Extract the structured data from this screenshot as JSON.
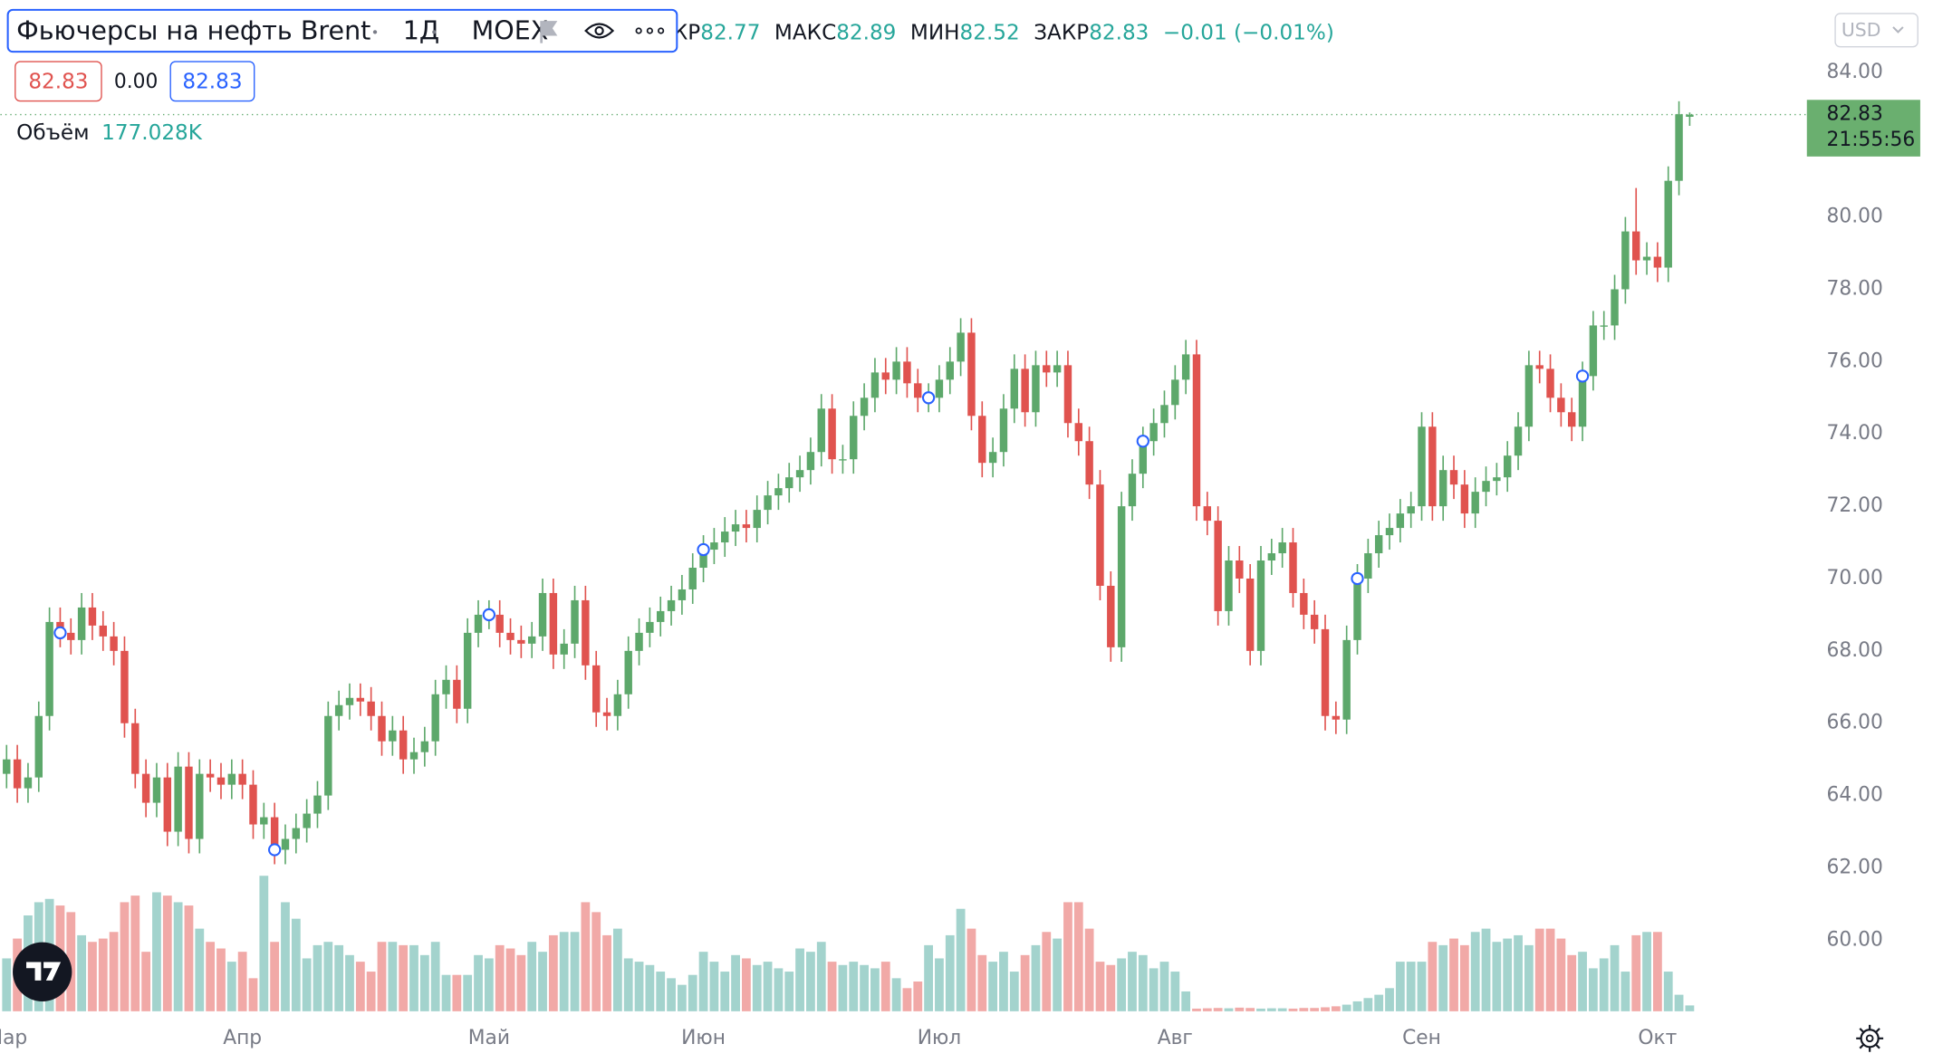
{
  "chart_data": {
    "type": "candlestick",
    "title": "Фьючерсы на нефть Brent",
    "interval": "1Д",
    "exchange": "MOEX",
    "open_label": "ОТКР",
    "high_label": "МАКС",
    "low_label": "МИН",
    "close_label": "ЗАКР",
    "change_label": "−0.01 (−0.01%)",
    "spread_label": "0.00",
    "volume_label": "Объём",
    "volume_value_label": "177.028K",
    "currency": "USD",
    "time_label": "21:55:56",
    "up_color": "#5da86b",
    "down_color": "#e0534f",
    "volume_up_color": "#a3d3cd",
    "volume_down_color": "#f1a9a7",
    "ylim": [
      58,
      86
    ],
    "yticks": [
      {
        "value": 60,
        "label": "60.00"
      },
      {
        "value": 62,
        "label": "62.00"
      },
      {
        "value": 64,
        "label": "64.00"
      },
      {
        "value": 66,
        "label": "66.00"
      },
      {
        "value": 68,
        "label": "68.00"
      },
      {
        "value": 70,
        "label": "70.00"
      },
      {
        "value": 72,
        "label": "72.00"
      },
      {
        "value": 74,
        "label": "74.00"
      },
      {
        "value": 76,
        "label": "76.00"
      },
      {
        "value": 78,
        "label": "78.00"
      },
      {
        "value": 80,
        "label": "80.00"
      },
      {
        "value": 84,
        "label": "84.00"
      }
    ],
    "categories": [
      "Мар",
      null,
      null,
      null,
      null,
      null,
      null,
      null,
      null,
      null,
      null,
      null,
      null,
      null,
      null,
      null,
      null,
      null,
      null,
      null,
      null,
      null,
      "Апр",
      null,
      null,
      null,
      null,
      null,
      null,
      null,
      null,
      null,
      null,
      null,
      null,
      null,
      null,
      null,
      null,
      null,
      null,
      null,
      null,
      null,
      null,
      "Май",
      null,
      null,
      null,
      null,
      null,
      null,
      null,
      null,
      null,
      null,
      null,
      null,
      null,
      null,
      null,
      null,
      null,
      null,
      null,
      "Июн",
      null,
      null,
      null,
      null,
      null,
      null,
      null,
      null,
      null,
      null,
      null,
      null,
      null,
      null,
      null,
      null,
      null,
      null,
      null,
      null,
      null,
      "Июл",
      null,
      null,
      null,
      null,
      null,
      null,
      null,
      null,
      null,
      null,
      null,
      null,
      null,
      null,
      null,
      null,
      null,
      null,
      null,
      null,
      null,
      "Авг",
      null,
      null,
      null,
      null,
      null,
      null,
      null,
      null,
      null,
      null,
      null,
      null,
      null,
      null,
      null,
      null,
      null,
      null,
      null,
      null,
      null,
      null,
      "Сен",
      null,
      null,
      null,
      null,
      null,
      null,
      null,
      null,
      null,
      null,
      null,
      null,
      null,
      null,
      null,
      null,
      null,
      null,
      null,
      null,
      null,
      "Окт",
      null,
      null,
      null
    ],
    "open": [
      64.6,
      65.0,
      64.2,
      64.5,
      66.2,
      68.8,
      68.5,
      68.3,
      69.2,
      68.7,
      68.4,
      68.0,
      66.0,
      64.6,
      63.8,
      64.5,
      63.0,
      64.8,
      62.8,
      64.6,
      64.5,
      64.3,
      64.6,
      64.3,
      63.2,
      63.4,
      62.5,
      62.8,
      63.1,
      63.5,
      64.0,
      66.2,
      66.5,
      66.7,
      66.6,
      66.2,
      65.5,
      65.8,
      65.0,
      65.2,
      65.5,
      66.8,
      67.2,
      66.4,
      68.5,
      69.0,
      69.0,
      68.5,
      68.3,
      68.2,
      68.4,
      69.6,
      67.9,
      68.2,
      69.4,
      67.6,
      66.3,
      66.2,
      66.8,
      68.0,
      68.5,
      68.8,
      69.1,
      69.4,
      69.7,
      70.3,
      70.8,
      71.0,
      71.3,
      71.5,
      71.4,
      71.9,
      72.3,
      72.5,
      72.8,
      73.0,
      73.5,
      74.7,
      73.3,
      73.3,
      74.5,
      75.0,
      75.7,
      75.5,
      76.0,
      75.4,
      75.0,
      75.0,
      75.5,
      76.0,
      76.8,
      74.5,
      73.2,
      73.5,
      74.7,
      75.8,
      74.6,
      75.9,
      75.7,
      75.9,
      74.3,
      73.8,
      72.6,
      69.8,
      68.1,
      72.0,
      72.9,
      73.8,
      74.3,
      74.8,
      75.5,
      76.2,
      72.0,
      71.6,
      69.1,
      70.5,
      70.0,
      68.0,
      70.5,
      70.7,
      71.0,
      69.6,
      69.0,
      68.6,
      66.2,
      66.1,
      68.3,
      70.0,
      70.7,
      71.2,
      71.4,
      71.8,
      72.0,
      74.2,
      72.0,
      73.0,
      72.6,
      71.8,
      72.4,
      72.7,
      72.8,
      73.4,
      74.2,
      75.9,
      75.8,
      75.0,
      74.6,
      74.2,
      75.6,
      77.0,
      77.0,
      78.0,
      79.6,
      78.8,
      78.9,
      78.6,
      81.0,
      82.77
    ],
    "high": [
      65.4,
      65.4,
      64.9,
      66.6,
      69.2,
      69.2,
      68.9,
      69.6,
      69.6,
      69.1,
      68.8,
      68.4,
      66.4,
      65.0,
      64.9,
      64.9,
      65.2,
      65.2,
      65.0,
      65.0,
      64.9,
      65.0,
      65.0,
      64.7,
      63.8,
      63.8,
      63.2,
      63.5,
      63.9,
      64.4,
      66.6,
      66.9,
      67.1,
      67.1,
      67.0,
      66.6,
      66.2,
      66.2,
      65.6,
      65.9,
      67.2,
      67.6,
      67.6,
      68.9,
      69.4,
      69.4,
      69.4,
      68.9,
      68.7,
      68.8,
      70.0,
      70.0,
      68.6,
      69.8,
      69.8,
      68.0,
      66.7,
      67.2,
      68.4,
      68.9,
      69.2,
      69.5,
      69.8,
      70.1,
      70.7,
      71.2,
      71.4,
      71.7,
      71.9,
      71.9,
      72.3,
      72.7,
      72.9,
      73.2,
      73.4,
      73.9,
      75.1,
      75.1,
      73.7,
      74.9,
      75.4,
      76.1,
      76.1,
      76.4,
      76.4,
      75.8,
      75.4,
      75.9,
      76.4,
      77.2,
      77.2,
      74.9,
      73.9,
      75.1,
      76.2,
      76.2,
      76.3,
      76.3,
      76.3,
      76.3,
      74.7,
      74.2,
      73.0,
      70.2,
      72.4,
      73.3,
      74.2,
      74.7,
      75.2,
      75.9,
      76.6,
      76.6,
      72.4,
      72.0,
      70.9,
      70.9,
      70.4,
      70.9,
      71.1,
      71.4,
      71.4,
      70.0,
      69.4,
      69.0,
      66.6,
      68.7,
      70.4,
      71.1,
      71.6,
      71.8,
      72.2,
      72.4,
      74.6,
      74.6,
      73.4,
      73.4,
      73.0,
      72.8,
      73.1,
      73.2,
      73.8,
      74.6,
      76.3,
      76.3,
      76.2,
      75.4,
      75.0,
      76.0,
      77.4,
      77.4,
      78.4,
      80.0,
      80.8,
      79.3,
      79.3,
      81.4,
      83.2,
      82.89
    ],
    "low": [
      64.2,
      63.8,
      63.8,
      64.1,
      65.8,
      68.1,
      67.9,
      67.9,
      68.3,
      68.0,
      67.6,
      65.6,
      64.2,
      63.4,
      63.4,
      62.6,
      62.6,
      62.4,
      62.4,
      64.1,
      63.9,
      63.9,
      63.9,
      62.8,
      62.8,
      62.1,
      62.1,
      62.4,
      62.7,
      63.1,
      63.6,
      65.8,
      66.1,
      66.2,
      65.8,
      65.1,
      65.1,
      64.6,
      64.6,
      64.8,
      65.1,
      66.4,
      66.0,
      66.0,
      68.1,
      68.6,
      68.1,
      67.9,
      67.8,
      67.8,
      68.0,
      67.5,
      67.5,
      67.8,
      67.2,
      65.9,
      65.8,
      65.8,
      66.4,
      67.6,
      68.1,
      68.4,
      68.7,
      69.0,
      69.3,
      69.9,
      70.4,
      70.6,
      70.9,
      71.0,
      71.0,
      71.5,
      71.9,
      72.1,
      72.4,
      72.6,
      73.1,
      72.9,
      72.9,
      72.9,
      74.1,
      74.6,
      75.1,
      75.1,
      75.0,
      74.6,
      74.6,
      74.6,
      75.1,
      75.6,
      74.1,
      72.8,
      72.8,
      73.1,
      74.3,
      74.2,
      74.2,
      75.3,
      75.3,
      73.9,
      73.4,
      72.2,
      69.4,
      67.7,
      67.7,
      71.6,
      72.5,
      73.4,
      73.9,
      74.4,
      75.1,
      71.6,
      71.2,
      68.7,
      68.7,
      69.6,
      67.6,
      67.6,
      70.1,
      70.3,
      69.2,
      68.6,
      68.2,
      65.8,
      65.7,
      65.7,
      67.9,
      69.6,
      70.3,
      70.8,
      71.0,
      71.4,
      71.6,
      71.6,
      71.6,
      72.2,
      71.4,
      71.4,
      72.0,
      72.3,
      72.4,
      73.0,
      73.8,
      75.4,
      74.6,
      74.2,
      73.8,
      73.8,
      75.2,
      76.6,
      76.6,
      77.6,
      78.4,
      78.4,
      78.2,
      78.2,
      80.6,
      82.52
    ],
    "close": [
      65.0,
      64.2,
      64.5,
      66.2,
      68.8,
      68.5,
      68.3,
      69.2,
      68.7,
      68.4,
      68.0,
      66.0,
      64.6,
      63.8,
      64.5,
      63.0,
      64.8,
      62.8,
      64.6,
      64.5,
      64.3,
      64.6,
      64.3,
      63.2,
      63.4,
      62.5,
      62.8,
      63.1,
      63.5,
      64.0,
      66.2,
      66.5,
      66.7,
      66.6,
      66.2,
      65.5,
      65.8,
      65.0,
      65.2,
      65.5,
      66.8,
      67.2,
      66.4,
      68.5,
      69.0,
      69.0,
      68.5,
      68.3,
      68.2,
      68.4,
      69.6,
      67.9,
      68.2,
      69.4,
      67.6,
      66.3,
      66.2,
      66.8,
      68.0,
      68.5,
      68.8,
      69.1,
      69.4,
      69.7,
      70.3,
      70.8,
      71.0,
      71.3,
      71.5,
      71.4,
      71.9,
      72.3,
      72.5,
      72.8,
      73.0,
      73.5,
      74.7,
      73.3,
      73.3,
      74.5,
      75.0,
      75.7,
      75.5,
      76.0,
      75.4,
      75.0,
      75.0,
      75.5,
      76.0,
      76.8,
      74.5,
      73.2,
      73.5,
      74.7,
      75.8,
      74.6,
      75.9,
      75.7,
      75.9,
      74.3,
      73.8,
      72.6,
      69.8,
      68.1,
      72.0,
      72.9,
      73.8,
      74.3,
      74.8,
      75.5,
      76.2,
      72.0,
      71.6,
      69.1,
      70.5,
      70.0,
      68.0,
      70.5,
      70.7,
      71.0,
      69.6,
      69.0,
      68.6,
      66.2,
      66.1,
      68.3,
      70.0,
      70.7,
      71.2,
      71.4,
      71.8,
      72.0,
      74.2,
      72.0,
      73.0,
      72.6,
      71.8,
      72.4,
      72.7,
      72.8,
      73.4,
      74.2,
      75.9,
      75.8,
      75.0,
      74.6,
      74.2,
      75.6,
      77.0,
      77.0,
      78.0,
      79.6,
      78.8,
      78.9,
      78.6,
      81.0,
      82.84,
      82.83
    ],
    "volume": [
      1600,
      2200,
      2900,
      3300,
      3400,
      3200,
      3000,
      2300,
      2100,
      2200,
      2400,
      3300,
      3500,
      1800,
      3600,
      3500,
      3300,
      3200,
      2500,
      2100,
      1900,
      1500,
      1800,
      1000,
      4100,
      2100,
      3300,
      2800,
      1600,
      2000,
      2100,
      2000,
      1700,
      1500,
      1200,
      2100,
      2100,
      2000,
      2000,
      1700,
      2100,
      1100,
      1100,
      1100,
      1700,
      1600,
      2000,
      1900,
      1700,
      2100,
      1800,
      2300,
      2400,
      2400,
      3300,
      3000,
      2300,
      2500,
      1600,
      1500,
      1400,
      1200,
      1000,
      800,
      1100,
      1800,
      1500,
      1200,
      1700,
      1600,
      1400,
      1500,
      1300,
      1200,
      1900,
      1800,
      2100,
      1500,
      1400,
      1500,
      1400,
      1300,
      1500,
      1000,
      700,
      900,
      2000,
      1600,
      2300,
      3100,
      2500,
      1700,
      1500,
      1800,
      1200,
      1700,
      2000,
      2400,
      2200,
      3300,
      3300,
      2500,
      1500,
      1400,
      1600,
      1800,
      1700,
      1300,
      1500,
      1200,
      600,
      80,
      90,
      100,
      90,
      110,
      100,
      80,
      90,
      90,
      80,
      100,
      100,
      120,
      150,
      200,
      300,
      400,
      500,
      700,
      1500,
      1500,
      1500,
      2100,
      2000,
      2200,
      2000,
      2400,
      2500,
      2100,
      2200,
      2300,
      2000,
      2500,
      2500,
      2200,
      1700,
      1800,
      1300,
      1600,
      2000,
      1200,
      2300,
      2400,
      2400,
      1200,
      500,
      177.028
    ]
  }
}
